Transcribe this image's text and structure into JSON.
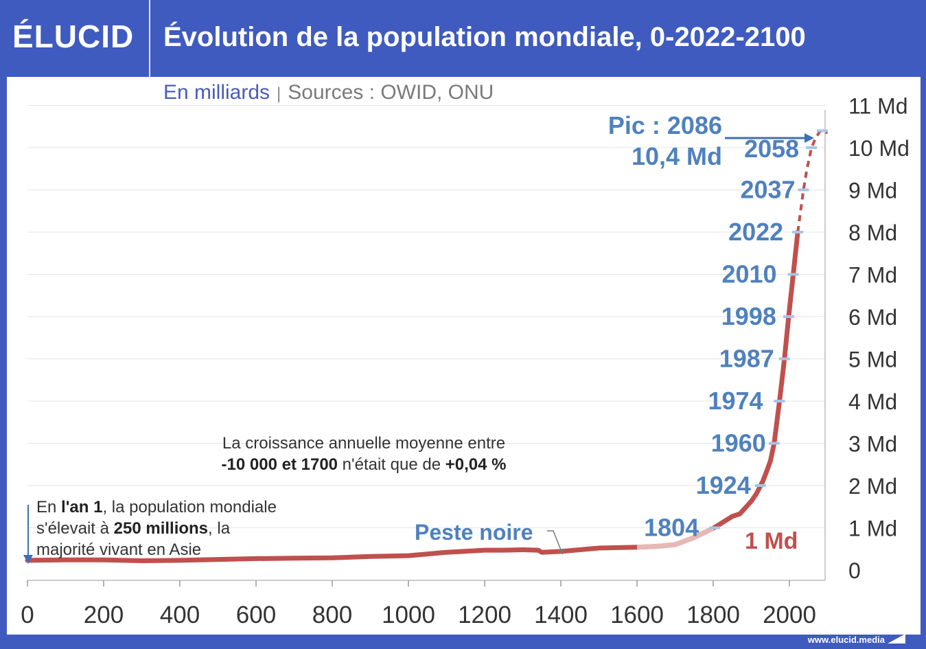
{
  "header": {
    "logo": "ÉLUCID",
    "title": "Évolution de la population mondiale, 0-2022-2100"
  },
  "subtitle": {
    "unit": "En milliards",
    "separator": "|",
    "sources": "Sources : OWID, ONU"
  },
  "footer": {
    "url": "www.elucid.media"
  },
  "annotations": {
    "growth_line1": "La croissance annuelle moyenne entre",
    "growth_line2_bold1": "-10 000 et 1700",
    "growth_line2_mid": " n'était que de ",
    "growth_line2_bold2": "+0,04 %",
    "year1_pre": "En ",
    "year1_bold1": "l'an 1",
    "year1_mid1": ", la population mondiale",
    "year1_mid2": "s'élevait à ",
    "year1_bold2": "250 millions",
    "year1_mid3": ", la",
    "year1_line3": "majorité vivant en Asie",
    "peste": "Peste noire",
    "pic_line1": "Pic : 2086",
    "pic_line2": "10,4 Md",
    "one_md": "1 Md"
  },
  "colors": {
    "brand_blue": "#3f5bbf",
    "series_red": "#c0504d",
    "label_blue": "#4f81bd",
    "text_dark": "#333333"
  },
  "chart_data": {
    "type": "line",
    "xlabel": "",
    "ylabel": "",
    "x_ticks": [
      0,
      200,
      400,
      600,
      800,
      1000,
      1200,
      1400,
      1600,
      1800,
      2000
    ],
    "y_ticks": [
      {
        "value": 0,
        "label": "0"
      },
      {
        "value": 1,
        "label": "1 Md"
      },
      {
        "value": 2,
        "label": "2 Md"
      },
      {
        "value": 3,
        "label": "3 Md"
      },
      {
        "value": 4,
        "label": "4 Md"
      },
      {
        "value": 5,
        "label": "5 Md"
      },
      {
        "value": 6,
        "label": "6 Md"
      },
      {
        "value": 7,
        "label": "7 Md"
      },
      {
        "value": 8,
        "label": "8 Md"
      },
      {
        "value": 9,
        "label": "9 Md"
      },
      {
        "value": 10,
        "label": "10 Md"
      },
      {
        "value": 11,
        "label": "11 Md"
      }
    ],
    "xlim": [
      0,
      2100
    ],
    "ylim": [
      0,
      11
    ],
    "grid": true,
    "series": [
      {
        "x": [
          0,
          100,
          200,
          300,
          400,
          500,
          600,
          700,
          800,
          900,
          1000,
          1100,
          1200,
          1250,
          1300,
          1340,
          1350,
          1400,
          1450,
          1500,
          1550,
          1600,
          1650,
          1700,
          1750,
          1800,
          1820,
          1850,
          1870,
          1900,
          1913,
          1920,
          1930,
          1940,
          1950
        ],
        "values": [
          0.23,
          0.24,
          0.24,
          0.22,
          0.23,
          0.25,
          0.27,
          0.28,
          0.29,
          0.32,
          0.34,
          0.42,
          0.47,
          0.47,
          0.48,
          0.47,
          0.42,
          0.44,
          0.48,
          0.52,
          0.53,
          0.54,
          0.56,
          0.6,
          0.77,
          0.99,
          1.1,
          1.27,
          1.33,
          1.63,
          1.8,
          1.92,
          2.1,
          2.33,
          2.58
        ]
      },
      {
        "x": [
          1950,
          1960,
          1974,
          1987,
          1998,
          2010,
          2022
        ],
        "values": [
          2.58,
          3.0,
          4.0,
          5.0,
          6.0,
          7.0,
          8.0
        ]
      },
      {
        "x": [
          2022,
          2030,
          2037,
          2045,
          2058,
          2070,
          2080,
          2086,
          2090,
          2100
        ],
        "values": [
          8.0,
          8.55,
          9.0,
          9.45,
          10.0,
          10.25,
          10.38,
          10.4,
          10.38,
          10.35
        ]
      }
    ],
    "milestones": [
      {
        "year": 1804,
        "label": "1804",
        "value": 1
      },
      {
        "year": 1924,
        "label": "1924",
        "value": 2
      },
      {
        "year": 1960,
        "label": "1960",
        "value": 3
      },
      {
        "year": 1974,
        "label": "1974",
        "value": 4
      },
      {
        "year": 1987,
        "label": "1987",
        "value": 5
      },
      {
        "year": 1998,
        "label": "1998",
        "value": 6
      },
      {
        "year": 2010,
        "label": "2010",
        "value": 7
      },
      {
        "year": 2022,
        "label": "2022",
        "value": 8
      },
      {
        "year": 2037,
        "label": "2037",
        "value": 9
      },
      {
        "year": 2058,
        "label": "2058",
        "value": 10
      },
      {
        "year": 2086,
        "label": "",
        "value": 10.4
      }
    ]
  }
}
